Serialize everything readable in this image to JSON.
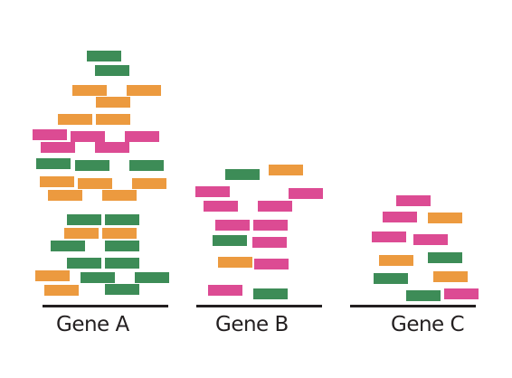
{
  "palette": {
    "green": "#3d8c57",
    "orange": "#ec9a3f",
    "pink": "#dc4b93",
    "axis": "#231f20"
  },
  "genes": [
    {
      "label": "Gene A"
    },
    {
      "label": "Gene B"
    },
    {
      "label": "Gene C"
    }
  ]
}
